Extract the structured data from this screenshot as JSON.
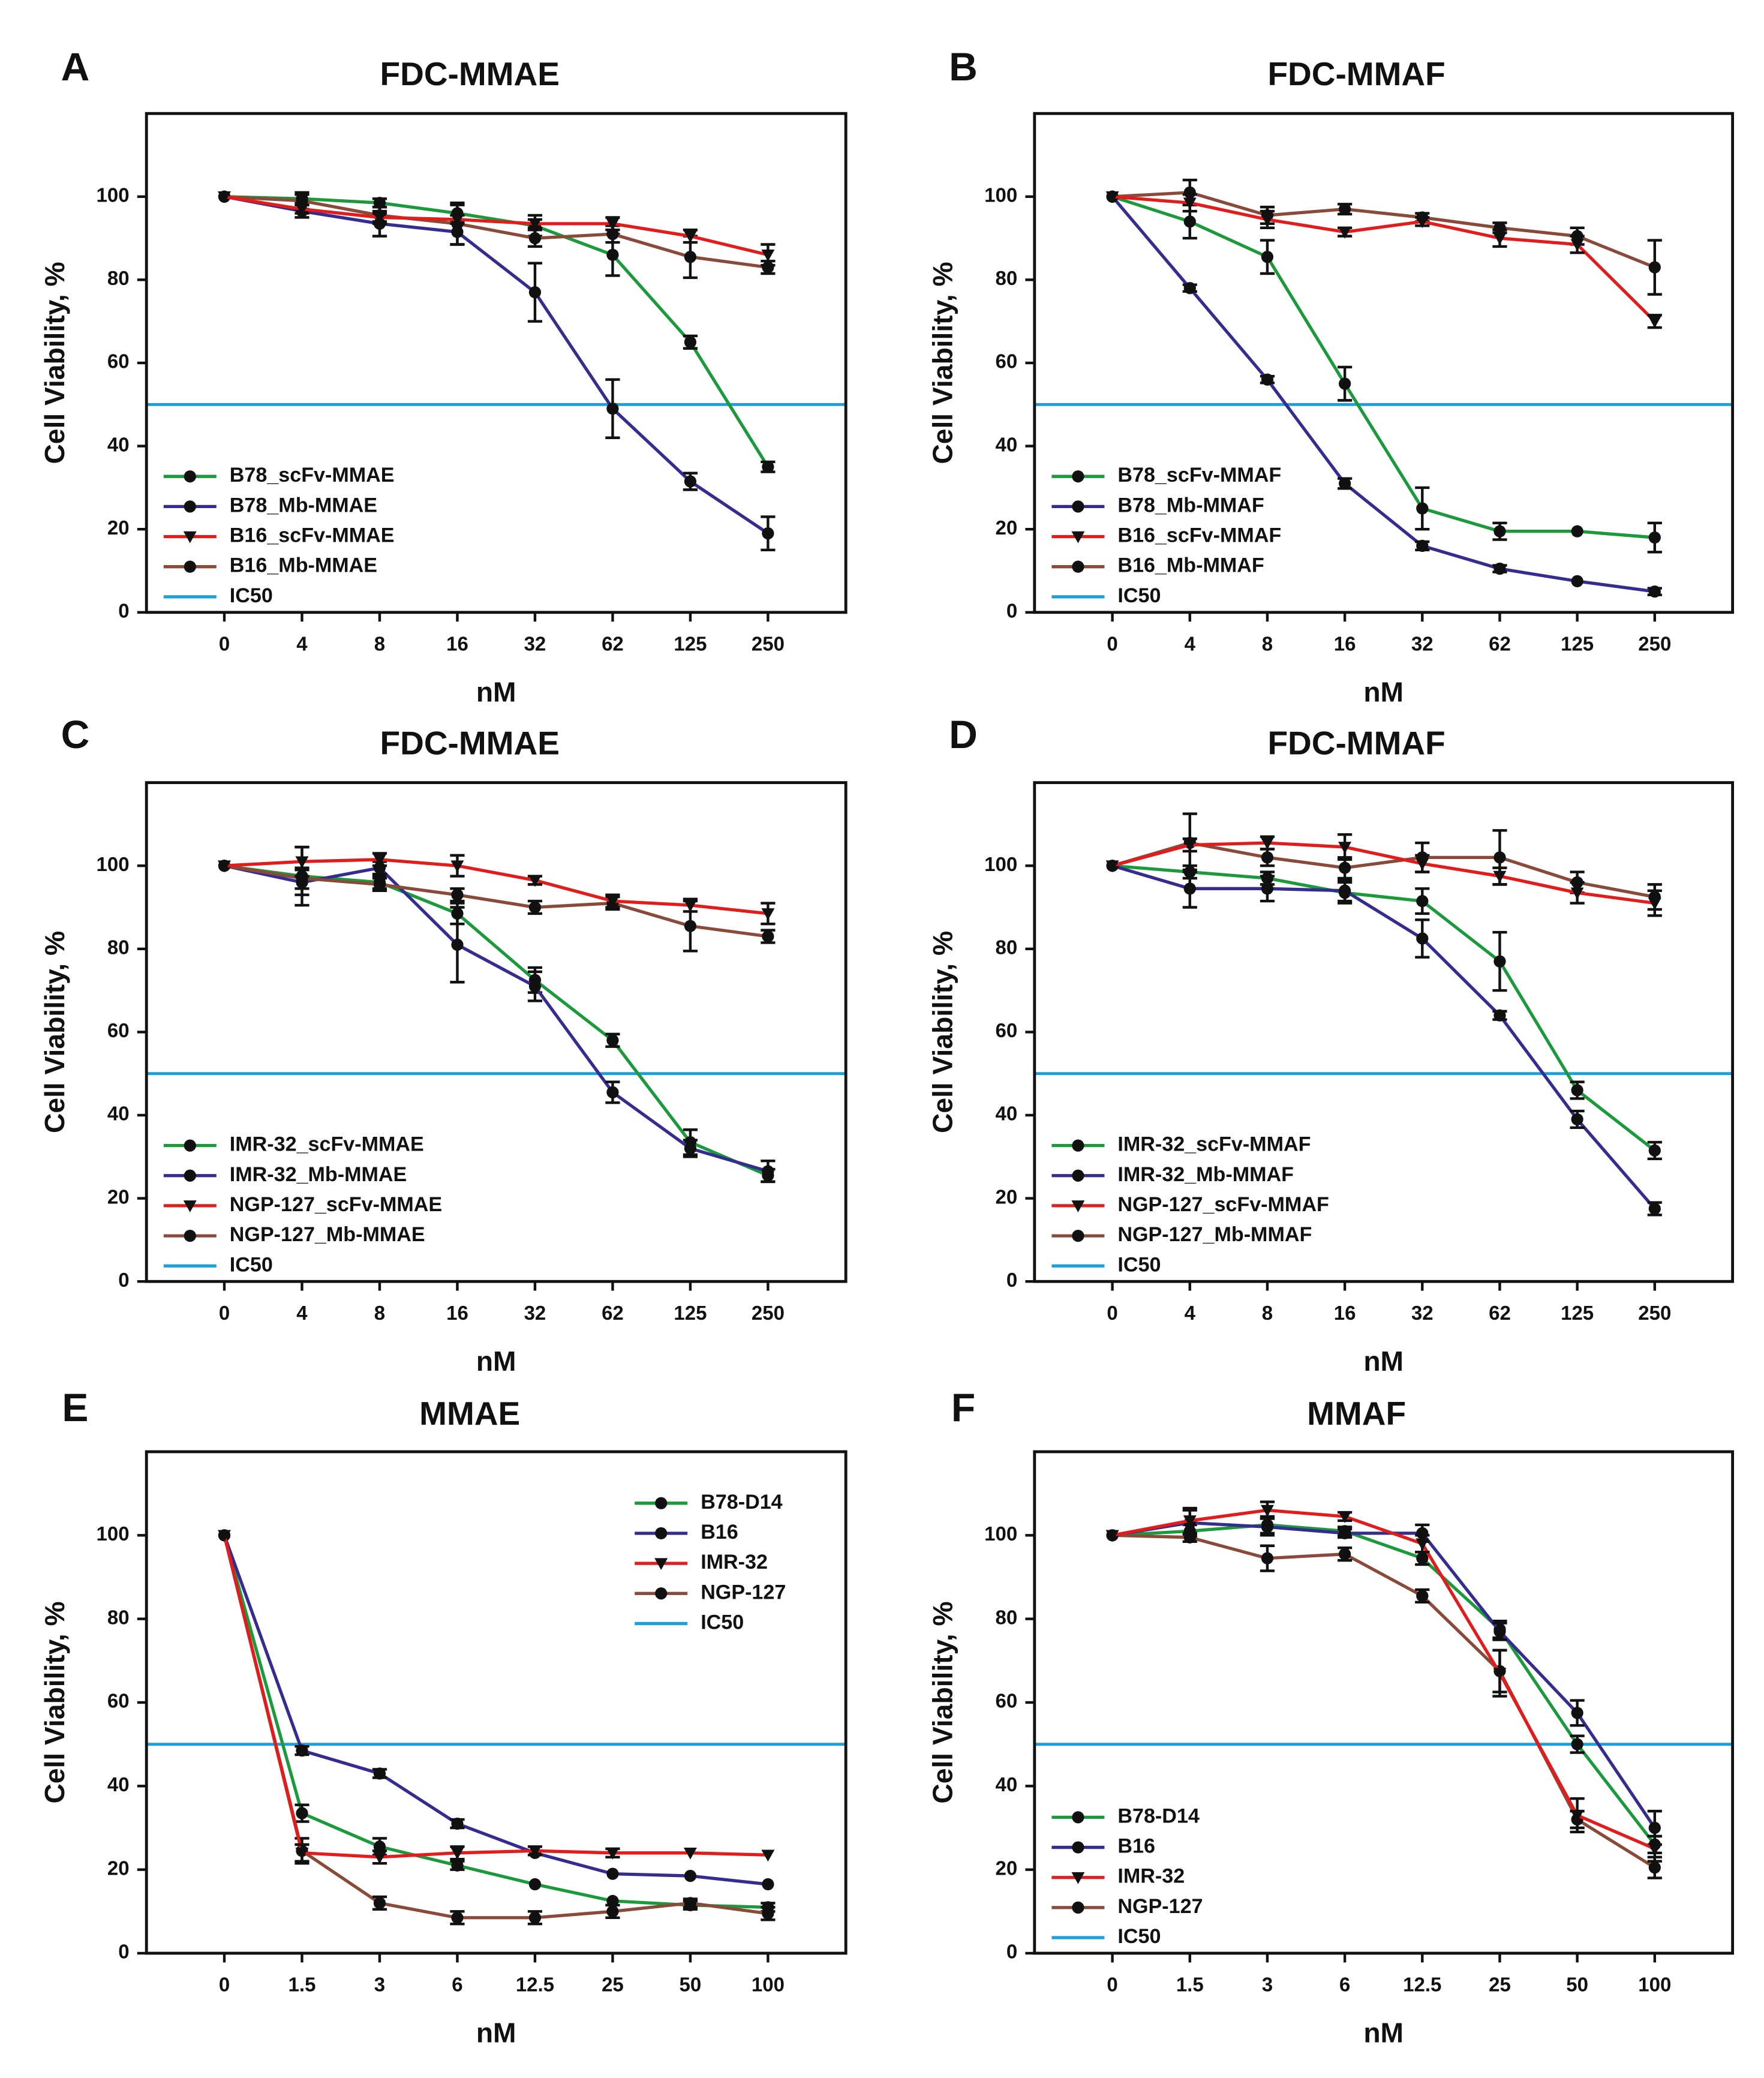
{
  "figure": {
    "panels": [
      {
        "letter": "A",
        "title": "FDC-MMAE",
        "xlabel": "nM",
        "ylabel": "Cell Viability, %"
      },
      {
        "letter": "B",
        "title": "FDC-MMAF",
        "xlabel": "nM",
        "ylabel": "Cell Viability, %"
      },
      {
        "letter": "C",
        "title": "FDC-MMAE",
        "xlabel": "nM",
        "ylabel": "Cell Viability, %"
      },
      {
        "letter": "D",
        "title": "FDC-MMAF",
        "xlabel": "nM",
        "ylabel": "Cell Viability, %"
      },
      {
        "letter": "E",
        "title": "MMAE",
        "xlabel": "nM",
        "ylabel": "Cell Viability, %"
      },
      {
        "letter": "F",
        "title": "MMAF",
        "xlabel": "nM",
        "ylabel": "Cell Viability, %"
      }
    ]
  },
  "colors": {
    "green": "#1a9a3a",
    "purple": "#352c8f",
    "red": "#e31b1b",
    "brown": "#8a4a3a",
    "ic50": "#1aa0dc"
  },
  "chart_data": [
    {
      "type": "line",
      "title": "FDC-MMAE",
      "xlabel": "nM",
      "ylabel": "Cell Viability, %",
      "categories": [
        "0",
        "4",
        "8",
        "16",
        "32",
        "62",
        "125",
        "250"
      ],
      "ylim": [
        0,
        120
      ],
      "yticks": [
        0,
        20,
        40,
        60,
        80,
        100
      ],
      "legend_position": "bottom-left",
      "ic50": 50,
      "series": [
        {
          "name": "B78_scFv-MMAE",
          "color": "#1a9a3a",
          "marker": "circle",
          "values": [
            100,
            99.5,
            98.5,
            96,
            93,
            86,
            65,
            35
          ],
          "errors": [
            0.5,
            1,
            1,
            2,
            2.5,
            5,
            1.5,
            1.2
          ]
        },
        {
          "name": "B78_Mb-MMAE",
          "color": "#352c8f",
          "marker": "circle",
          "values": [
            100,
            96.5,
            93.5,
            91.5,
            77,
            49,
            31.5,
            19
          ],
          "errors": [
            0.5,
            1.5,
            3,
            3,
            7,
            7,
            2,
            4
          ]
        },
        {
          "name": "B16_scFv-MMAE",
          "color": "#e31b1b",
          "marker": "triangle",
          "values": [
            100,
            97,
            95,
            94.5,
            93.5,
            93.5,
            90.5,
            86
          ],
          "errors": [
            0.5,
            1,
            1,
            1,
            1,
            1.5,
            1.5,
            2.5
          ]
        },
        {
          "name": "B16_Mb-MMAE",
          "color": "#8a4a3a",
          "marker": "circle",
          "values": [
            100,
            99,
            95.5,
            93.5,
            90,
            91,
            85.5,
            83
          ],
          "errors": [
            0.5,
            2,
            2,
            5,
            2,
            2,
            5,
            1.5
          ]
        }
      ],
      "ic50_label": "IC50"
    },
    {
      "type": "line",
      "title": "FDC-MMAF",
      "xlabel": "nM",
      "ylabel": "Cell Viability, %",
      "categories": [
        "0",
        "4",
        "8",
        "16",
        "32",
        "62",
        "125",
        "250"
      ],
      "ylim": [
        0,
        120
      ],
      "yticks": [
        0,
        20,
        40,
        60,
        80,
        100
      ],
      "legend_position": "bottom-left",
      "ic50": 50,
      "series": [
        {
          "name": "B78_scFv-MMAF",
          "color": "#1a9a3a",
          "marker": "circle",
          "values": [
            100,
            94,
            85.5,
            55,
            25,
            19.5,
            19.5,
            18
          ],
          "errors": [
            0.5,
            4,
            4,
            4,
            5,
            2,
            0.5,
            3.5
          ]
        },
        {
          "name": "B78_Mb-MMAF",
          "color": "#352c8f",
          "marker": "circle",
          "values": [
            100,
            78,
            56,
            31,
            16,
            10.5,
            7.5,
            5
          ],
          "errors": [
            0.5,
            0.8,
            0.8,
            1.2,
            1,
            0.8,
            0.5,
            0.8
          ]
        },
        {
          "name": "B16_scFv-MMAF",
          "color": "#e31b1b",
          "marker": "triangle",
          "values": [
            100,
            98.5,
            94.5,
            91.5,
            94,
            90,
            88.5,
            70
          ],
          "errors": [
            0.5,
            2,
            2,
            1,
            1,
            2,
            2,
            1.5
          ]
        },
        {
          "name": "B16_Mb-MMAF",
          "color": "#8a4a3a",
          "marker": "circle",
          "values": [
            100,
            101,
            95.5,
            97,
            95,
            92.5,
            90.5,
            83
          ],
          "errors": [
            0.5,
            3,
            2,
            1.2,
            1,
            1.2,
            2,
            6.5
          ]
        }
      ],
      "ic50_label": "IC50"
    },
    {
      "type": "line",
      "title": "FDC-MMAE",
      "xlabel": "nM",
      "ylabel": "Cell Viability, %",
      "categories": [
        "0",
        "4",
        "8",
        "16",
        "32",
        "62",
        "125",
        "250"
      ],
      "ylim": [
        0,
        120
      ],
      "yticks": [
        0,
        20,
        40,
        60,
        80,
        100
      ],
      "legend_position": "bottom-left",
      "ic50": 50,
      "series": [
        {
          "name": "IMR-32_scFv-MMAE",
          "color": "#1a9a3a",
          "marker": "circle",
          "values": [
            100,
            97.5,
            96,
            88.5,
            72.5,
            58,
            33.5,
            25.5
          ],
          "errors": [
            0.5,
            7,
            1.5,
            2.5,
            3,
            1.5,
            3,
            1.5
          ]
        },
        {
          "name": "IMR-32_Mb-MMAE",
          "color": "#352c8f",
          "marker": "circle",
          "values": [
            100,
            96,
            99.5,
            81,
            71,
            45.5,
            32,
            26.5
          ],
          "errors": [
            0.5,
            3,
            1.5,
            9,
            3.5,
            2.5,
            2,
            2.5
          ]
        },
        {
          "name": "NGP-127_scFv-MMAE",
          "color": "#e31b1b",
          "marker": "triangle",
          "values": [
            100,
            101,
            101.5,
            100,
            96.5,
            91.5,
            90.5,
            88.5
          ],
          "errors": [
            0.5,
            3.5,
            1.5,
            2.5,
            1,
            1.5,
            1.5,
            2.5
          ]
        },
        {
          "name": "NGP-127_Mb-MMAE",
          "color": "#8a4a3a",
          "marker": "circle",
          "values": [
            100,
            97,
            95.5,
            93,
            90,
            91,
            85.5,
            83
          ],
          "errors": [
            0.5,
            2.5,
            1.5,
            1.5,
            1.5,
            1.5,
            6,
            1.5
          ]
        }
      ],
      "ic50_label": "IC50"
    },
    {
      "type": "line",
      "title": "FDC-MMAF",
      "xlabel": "nM",
      "ylabel": "Cell Viability, %",
      "categories": [
        "0",
        "4",
        "8",
        "16",
        "32",
        "62",
        "125",
        "250"
      ],
      "ylim": [
        0,
        120
      ],
      "yticks": [
        0,
        20,
        40,
        60,
        80,
        100
      ],
      "legend_position": "bottom-left",
      "ic50": 50,
      "series": [
        {
          "name": "IMR-32_scFv-MMAF",
          "color": "#1a9a3a",
          "marker": "circle",
          "values": [
            100,
            98.5,
            97,
            93.5,
            91.5,
            77,
            46,
            31.5
          ],
          "errors": [
            0.5,
            1.5,
            1.5,
            2.5,
            3,
            7,
            2,
            2
          ]
        },
        {
          "name": "IMR-32_Mb-MMAF",
          "color": "#352c8f",
          "marker": "circle",
          "values": [
            100,
            94.5,
            94.5,
            94,
            82.5,
            64,
            39,
            17.5
          ],
          "errors": [
            0.5,
            4.5,
            3,
            2.5,
            4.5,
            1,
            2,
            1.5
          ]
        },
        {
          "name": "NGP-127_scFv-MMAF",
          "color": "#e31b1b",
          "marker": "triangle",
          "values": [
            100,
            105,
            105.5,
            104.5,
            100.5,
            97.5,
            93.5,
            91
          ],
          "errors": [
            0.5,
            1.5,
            1.5,
            3,
            2,
            2,
            2.5,
            3
          ]
        },
        {
          "name": "NGP-127_Mb-MMAF",
          "color": "#8a4a3a",
          "marker": "circle",
          "values": [
            100,
            105.5,
            102,
            99.5,
            102,
            102,
            96,
            92.5
          ],
          "errors": [
            0.5,
            7,
            2,
            2.5,
            3.5,
            6.5,
            2.5,
            3
          ]
        }
      ],
      "ic50_label": "IC50"
    },
    {
      "type": "line",
      "title": "MMAE",
      "xlabel": "nM",
      "ylabel": "Cell Viability, %",
      "categories": [
        "0",
        "1.5",
        "3",
        "6",
        "12.5",
        "25",
        "50",
        "100"
      ],
      "ylim": [
        0,
        120
      ],
      "yticks": [
        0,
        20,
        40,
        60,
        80,
        100
      ],
      "legend_position": "top-right",
      "ic50": 50,
      "series": [
        {
          "name": "B78-D14",
          "color": "#1a9a3a",
          "marker": "circle",
          "values": [
            100,
            33.5,
            25.5,
            21,
            16.5,
            12.5,
            11.5,
            11
          ],
          "errors": [
            0.5,
            2,
            2,
            1,
            0.5,
            0.5,
            1,
            1
          ]
        },
        {
          "name": "B16",
          "color": "#352c8f",
          "marker": "circle",
          "values": [
            100,
            48.5,
            43,
            31,
            24,
            19,
            18.5,
            16.5
          ],
          "errors": [
            0.5,
            1,
            1,
            1,
            0.5,
            0.5,
            0.5,
            0.5
          ]
        },
        {
          "name": "IMR-32",
          "color": "#e31b1b",
          "marker": "triangle",
          "values": [
            100,
            24,
            23,
            24,
            24.5,
            24,
            24,
            23.5
          ],
          "errors": [
            0.5,
            2,
            1.5,
            1.5,
            1,
            1,
            0.5,
            0.5
          ]
        },
        {
          "name": "NGP-127",
          "color": "#8a4a3a",
          "marker": "circle",
          "values": [
            100,
            24.5,
            12,
            8.5,
            8.5,
            10,
            12,
            9.5
          ],
          "errors": [
            0.5,
            3,
            1.5,
            1.5,
            1.5,
            1.5,
            1,
            1.5
          ]
        }
      ],
      "ic50_label": "IC50"
    },
    {
      "type": "line",
      "title": "MMAF",
      "xlabel": "nM",
      "ylabel": "Cell Viability, %",
      "categories": [
        "0",
        "1.5",
        "3",
        "6",
        "12.5",
        "25",
        "50",
        "100"
      ],
      "ylim": [
        0,
        120
      ],
      "yticks": [
        0,
        20,
        40,
        60,
        80,
        100
      ],
      "legend_position": "bottom-left",
      "ic50": 50,
      "series": [
        {
          "name": "B78-D14",
          "color": "#1a9a3a",
          "marker": "circle",
          "values": [
            100,
            101,
            102.5,
            101,
            94.5,
            77.5,
            50,
            26
          ],
          "errors": [
            0.5,
            1.5,
            2,
            1,
            1.5,
            2,
            2,
            2
          ]
        },
        {
          "name": "B16",
          "color": "#352c8f",
          "marker": "circle",
          "values": [
            100,
            103,
            102,
            100.5,
            100.5,
            77,
            57.5,
            30
          ],
          "errors": [
            0.5,
            3,
            2,
            1,
            2,
            2,
            3,
            4
          ]
        },
        {
          "name": "IMR-32",
          "color": "#e31b1b",
          "marker": "triangle",
          "values": [
            100,
            103.5,
            106,
            104.5,
            98,
            67,
            33,
            25
          ],
          "errors": [
            0.5,
            3,
            2,
            1,
            2,
            5.5,
            4,
            3
          ]
        },
        {
          "name": "NGP-127",
          "color": "#8a4a3a",
          "marker": "circle",
          "values": [
            100,
            99.5,
            94.5,
            95.5,
            85.5,
            67.5,
            32,
            20.5
          ],
          "errors": [
            0.5,
            1,
            3,
            1.5,
            1.5,
            5,
            2,
            2.5
          ]
        }
      ],
      "ic50_label": "IC50"
    }
  ]
}
